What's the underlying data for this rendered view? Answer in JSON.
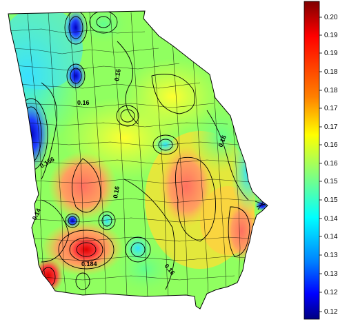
{
  "map": {
    "region": "Georgia",
    "counties_visible": true,
    "contour_labels": [
      "0.16",
      "0.16",
      "0.156",
      "0.14",
      "0.16",
      "0.184",
      "0.16",
      "0.16"
    ]
  },
  "colorbar": {
    "orientation": "vertical",
    "colormap": "jet",
    "min": 0.115,
    "max": 0.205,
    "ticks": [
      "0.20",
      "0.19",
      "0.19",
      "0.18",
      "0.18",
      "0.17",
      "0.17",
      "0.16",
      "0.16",
      "0.15",
      "0.15",
      "0.14",
      "0.14",
      "0.13",
      "0.13",
      "0.12",
      "0.12"
    ],
    "colors": {
      "top": "#7f0000",
      "red": "#ff0000",
      "orange": "#ff8000",
      "yellow": "#ffff00",
      "green": "#80ff80",
      "cyan": "#00ffff",
      "blue": "#0000ff",
      "bottom": "#00007f"
    }
  }
}
